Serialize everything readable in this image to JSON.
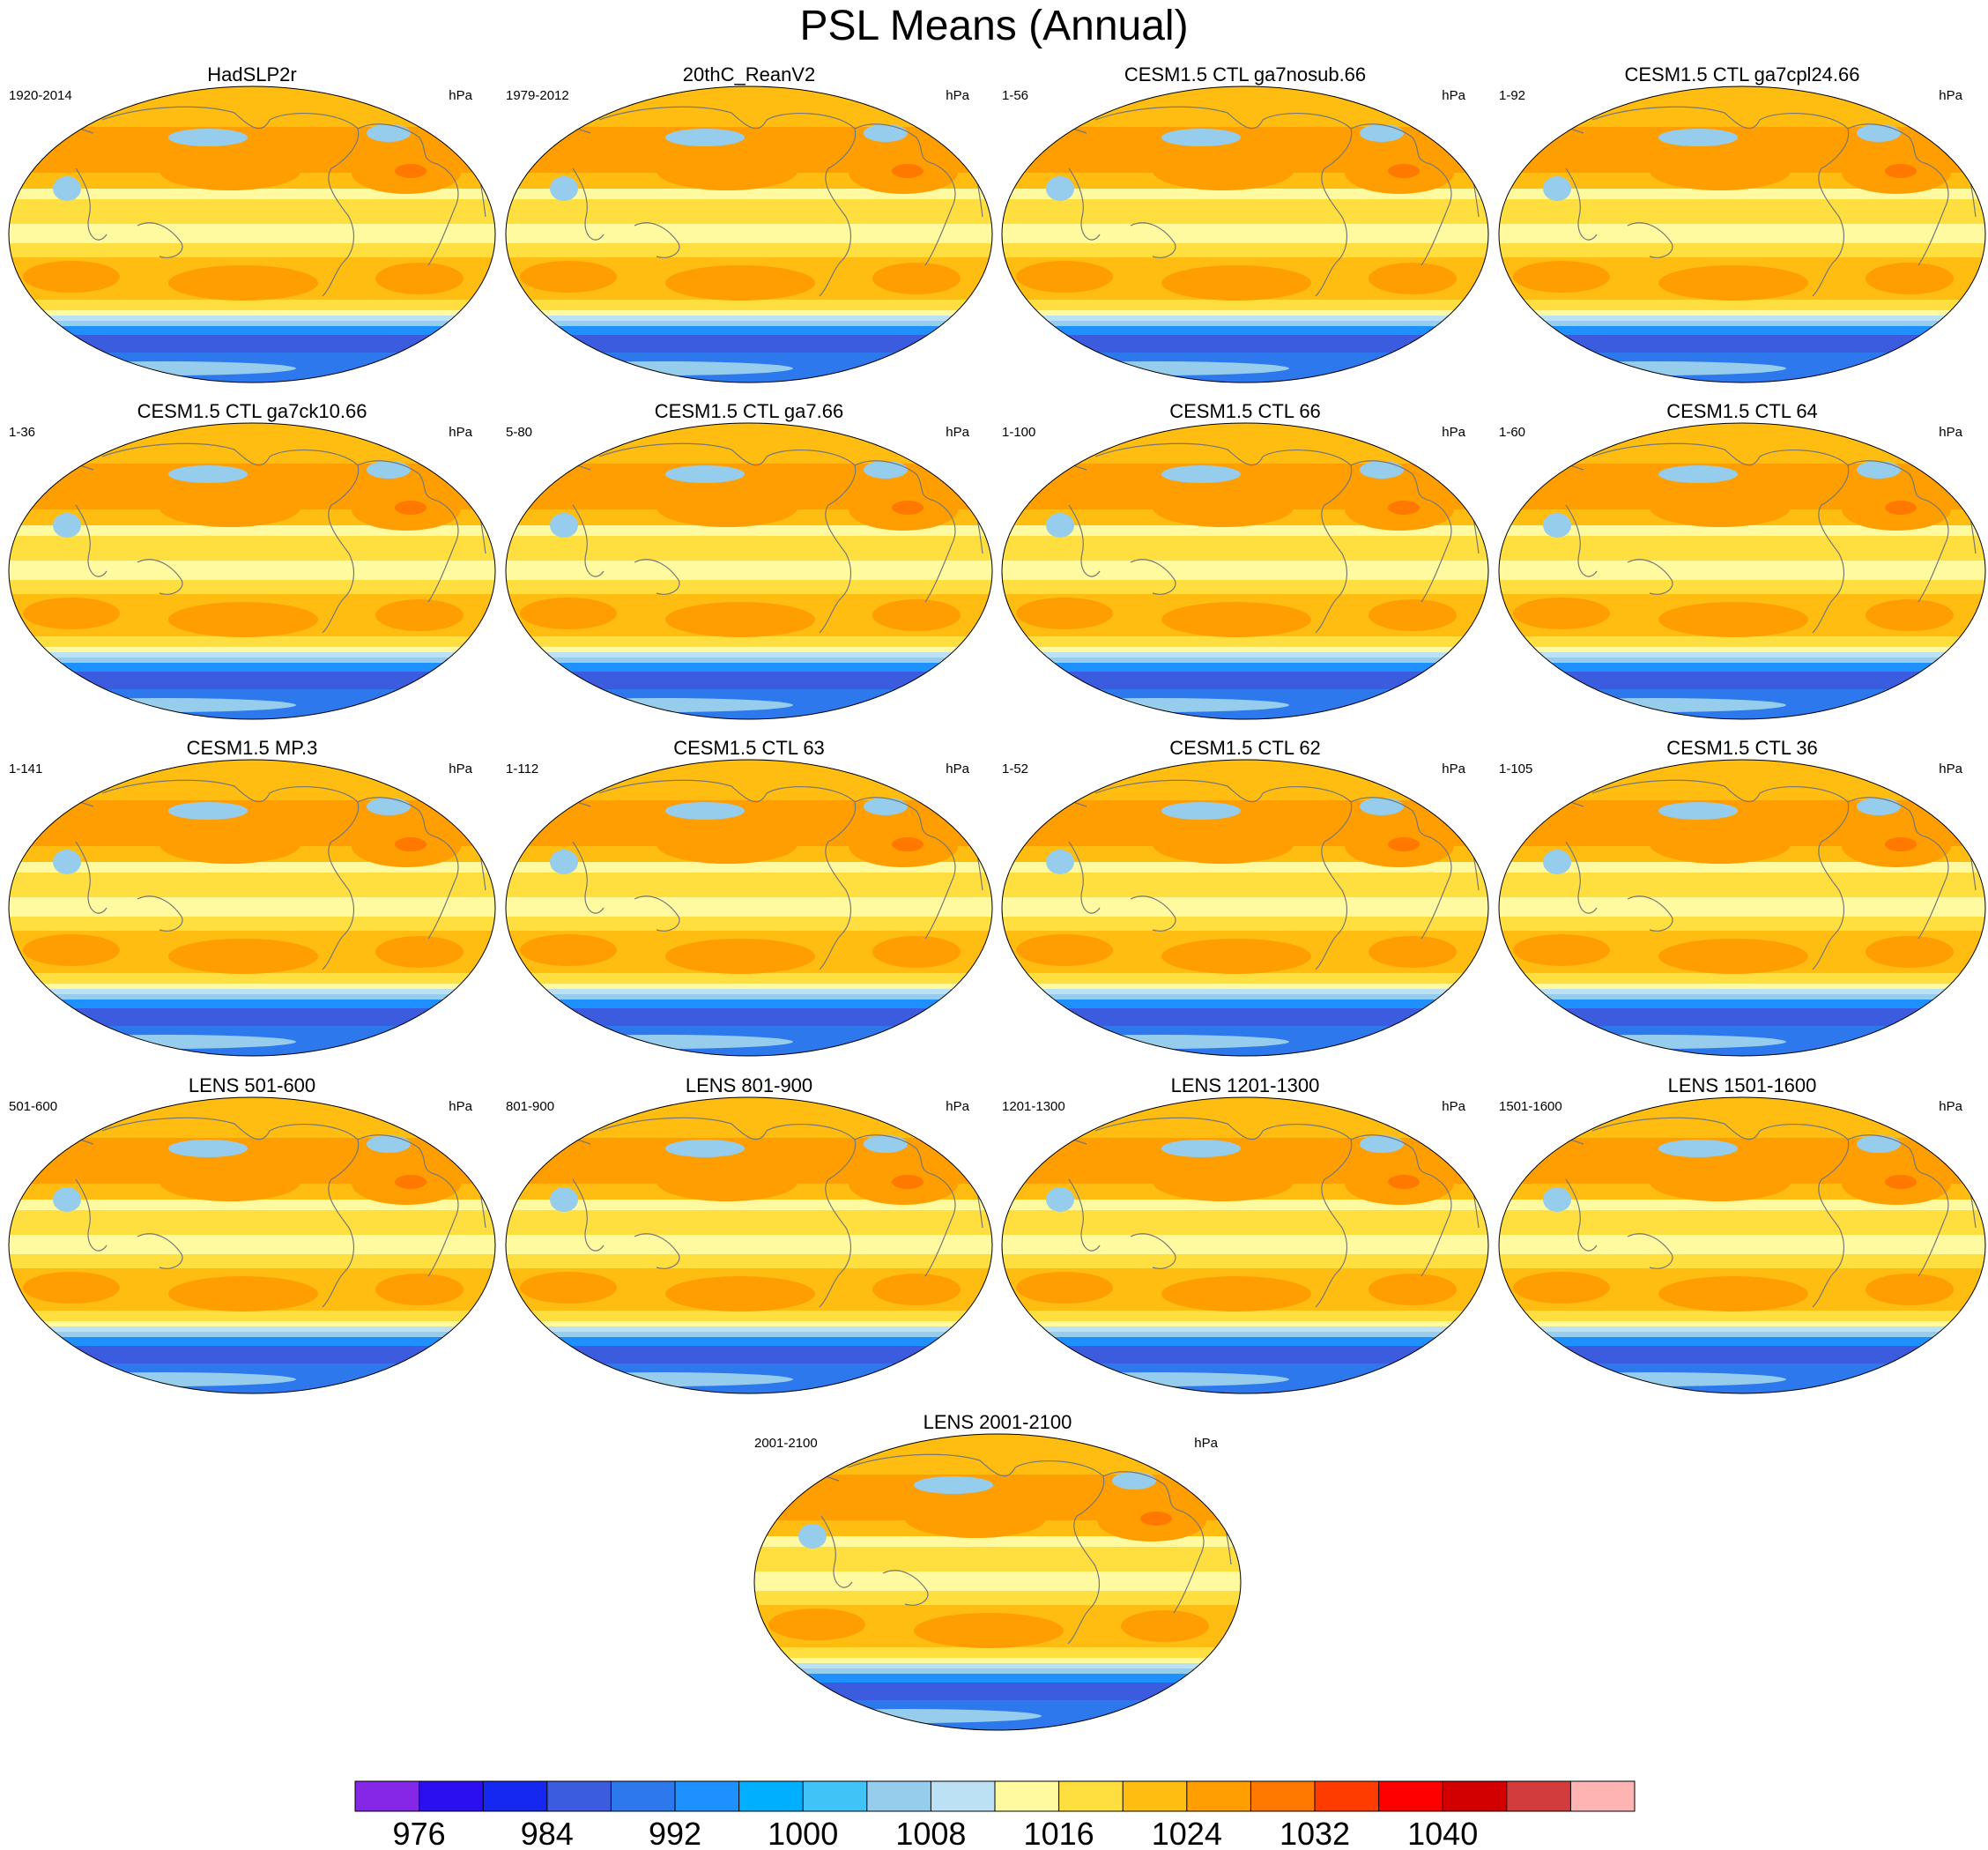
{
  "chart_data": {
    "type": "heatmap",
    "title": "PSL Means (Annual)",
    "units": "hPa",
    "panels": [
      {
        "name": "HadSLP2r",
        "period": "1920-2014"
      },
      {
        "name": "20thC_ReanV2",
        "period": "1979-2012"
      },
      {
        "name": "CESM1.5 CTL ga7nosub.66",
        "period": "1-56"
      },
      {
        "name": "CESM1.5 CTL ga7cpl24.66",
        "period": "1-92"
      },
      {
        "name": "CESM1.5 CTL ga7ck10.66",
        "period": "1-36"
      },
      {
        "name": "CESM1.5 CTL ga7.66",
        "period": "5-80"
      },
      {
        "name": "CESM1.5 CTL 66",
        "period": "1-100"
      },
      {
        "name": "CESM1.5 CTL 64",
        "period": "1-60"
      },
      {
        "name": "CESM1.5 MP.3",
        "period": "1-141"
      },
      {
        "name": "CESM1.5 CTL 63",
        "period": "1-112"
      },
      {
        "name": "CESM1.5 CTL 62",
        "period": "1-52"
      },
      {
        "name": "CESM1.5 CTL 36",
        "period": "1-105"
      },
      {
        "name": "LENS 501-600",
        "period": "501-600"
      },
      {
        "name": "LENS 801-900",
        "period": "801-900"
      },
      {
        "name": "LENS 1201-1300",
        "period": "1201-1300"
      },
      {
        "name": "LENS 1501-1600",
        "period": "1501-1600"
      },
      {
        "name": "LENS 2001-2100",
        "period": "2001-2100"
      }
    ],
    "colorbar": {
      "levels": [
        976,
        980,
        984,
        988,
        992,
        996,
        1000,
        1004,
        1008,
        1012,
        1016,
        1020,
        1024,
        1028,
        1032,
        1036,
        1040,
        1044,
        1048
      ],
      "labels": [
        "976",
        "984",
        "992",
        "1000",
        "1008",
        "1016",
        "1024",
        "1032",
        "1040"
      ],
      "colors": [
        "#8527e6",
        "#2c0ff0",
        "#1428f0",
        "#3c5ce0",
        "#2d78ec",
        "#1e90ff",
        "#00b0ff",
        "#40c4f8",
        "#96ccec",
        "#bde1f4",
        "#fffa9f",
        "#ffde40",
        "#ffbd12",
        "#ff9e00",
        "#ff7800",
        "#ff3c00",
        "#ff0000",
        "#d20000",
        "#d23c3c",
        "#ffb4b4"
      ]
    }
  }
}
